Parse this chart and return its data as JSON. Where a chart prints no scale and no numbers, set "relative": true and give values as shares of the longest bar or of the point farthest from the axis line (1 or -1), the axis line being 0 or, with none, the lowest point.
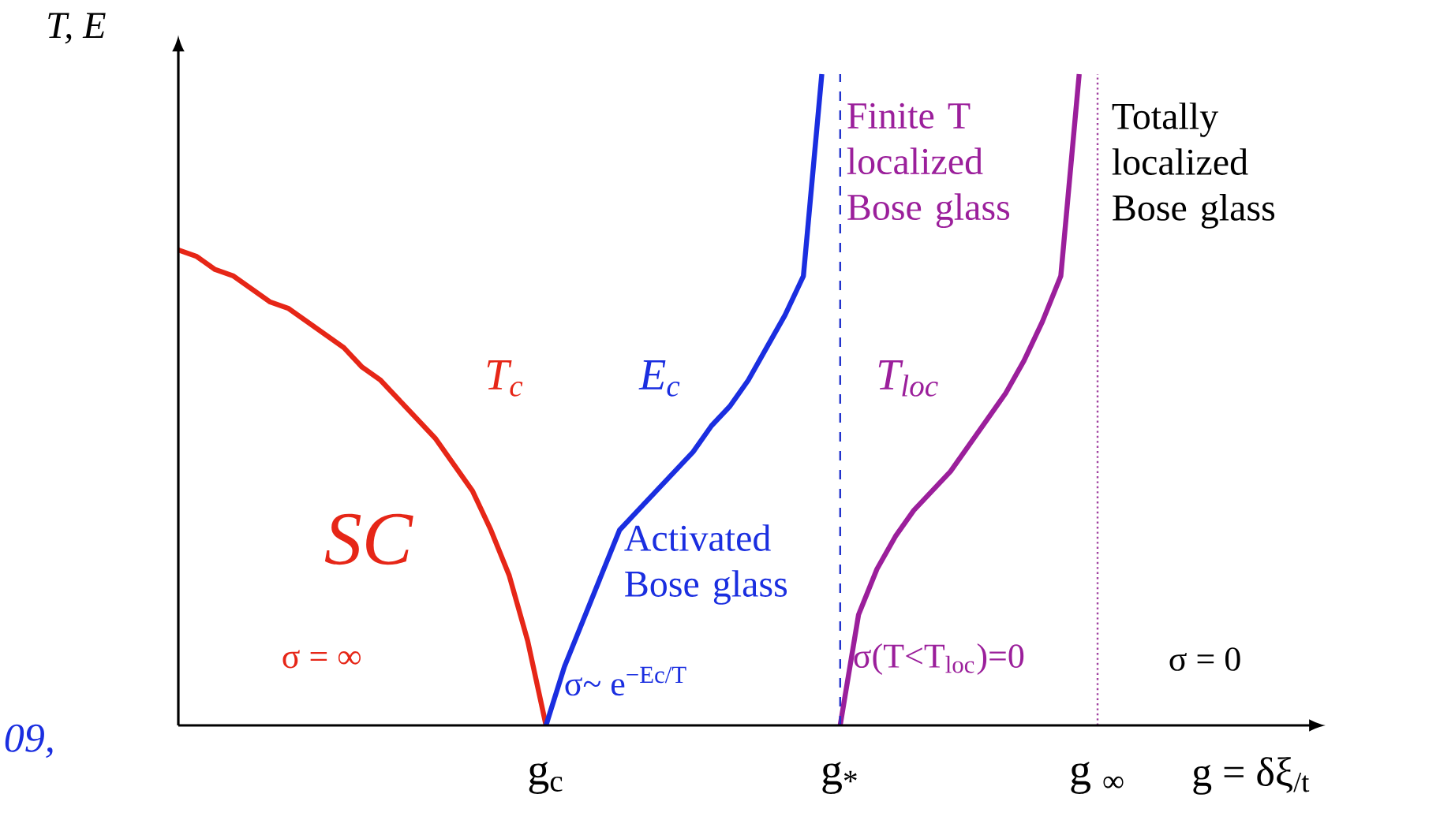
{
  "chart_data": {
    "type": "line",
    "relative": true,
    "ylabel": "T, E",
    "xlabel": "g = δξ$_{/t}$",
    "categories": [
      null,
      null,
      null,
      null,
      null,
      null,
      null,
      null,
      null,
      null,
      null,
      null,
      null,
      null,
      null,
      null,
      null,
      null,
      null,
      null,
      "g$_{c}$",
      null,
      null,
      null,
      null,
      null,
      null,
      null,
      null,
      null,
      null,
      null,
      null,
      null,
      null,
      null,
      "g$_{*}$",
      null,
      null,
      null,
      null,
      null,
      null,
      null,
      null,
      null,
      null,
      null,
      null,
      null,
      "g $_{∞}$",
      null,
      null,
      null,
      null,
      null,
      null,
      null,
      null,
      null,
      null,
      null,
      null
    ],
    "series": [
      {
        "name": "T$_{c}$",
        "color": "#e62617",
        "values": [
          0.73,
          0.72,
          0.7,
          0.69,
          0.67,
          0.65,
          0.64,
          0.62,
          0.6,
          0.58,
          0.55,
          0.53,
          0.5,
          0.47,
          0.44,
          0.4,
          0.36,
          0.3,
          0.23,
          0.13,
          0,
          null,
          null,
          null,
          null,
          null,
          null,
          null,
          null,
          null,
          null,
          null,
          null,
          null,
          null,
          null,
          null,
          null,
          null,
          null,
          null,
          null,
          null,
          null,
          null,
          null,
          null,
          null,
          null,
          null,
          null,
          null,
          null,
          null,
          null,
          null,
          null,
          null,
          null,
          null,
          null,
          null,
          null
        ]
      },
      {
        "name": "E$_{c}$",
        "color": "#1a2ee0",
        "values": [
          null,
          null,
          null,
          null,
          null,
          null,
          null,
          null,
          null,
          null,
          null,
          null,
          null,
          null,
          null,
          null,
          null,
          null,
          null,
          null,
          0,
          0.09,
          0.16,
          0.23,
          0.3,
          0.33,
          0.36,
          0.39,
          0.42,
          0.46,
          0.49,
          0.53,
          0.58,
          0.63,
          0.69,
          1,
          null,
          null,
          null,
          null,
          null,
          null,
          null,
          null,
          null,
          null,
          null,
          null,
          null,
          null,
          null,
          null,
          null,
          null,
          null,
          null,
          null,
          null,
          null,
          null,
          null,
          null,
          null
        ]
      },
      {
        "name": "T$_{loc}$",
        "color": "#9b1f9b",
        "values": [
          null,
          null,
          null,
          null,
          null,
          null,
          null,
          null,
          null,
          null,
          null,
          null,
          null,
          null,
          null,
          null,
          null,
          null,
          null,
          null,
          null,
          null,
          null,
          null,
          null,
          null,
          null,
          null,
          null,
          null,
          null,
          null,
          null,
          null,
          null,
          null,
          0,
          0.17,
          0.24,
          0.29,
          0.33,
          0.36,
          0.39,
          0.43,
          0.47,
          0.51,
          0.56,
          0.62,
          0.69,
          1,
          null,
          null,
          null,
          null,
          null,
          null,
          null,
          null,
          null,
          null,
          null,
          null,
          null
        ]
      }
    ],
    "ref_lines": [
      {
        "axis": "x",
        "value": "g$_{*}$",
        "color": "#2233cc",
        "line_style": "dashed"
      },
      {
        "axis": "x",
        "value": "g $_{∞}$",
        "color": "#a0409f",
        "line_style": "dotted"
      }
    ],
    "annotations": [
      "SC",
      "σ = ∞",
      "Activated Bose glass",
      "σ~ e$^{−Ec/T}$",
      "Finite T localized Bose glass",
      "σ(T<T$_{loc}$)=0",
      "Totally localized Bose glass",
      "σ = 0",
      "09,"
    ]
  }
}
